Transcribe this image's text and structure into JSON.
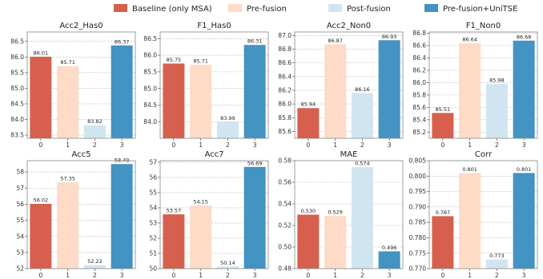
{
  "legend": {
    "placement": "top-center",
    "items": [
      {
        "label": "Baseline (only MSA)",
        "color": "#d6604d"
      },
      {
        "label": "Pre-fusion",
        "color": "#fddbc7"
      },
      {
        "label": "Post-fusion",
        "color": "#d1e5f0"
      },
      {
        "label": "Pre-fusion+UniTSE",
        "color": "#4393c3"
      }
    ]
  },
  "chart_data": [
    {
      "type": "bar",
      "title": "Acc2_Has0",
      "categories": [
        "0",
        "1",
        "2",
        "3"
      ],
      "values": [
        86.01,
        85.71,
        83.82,
        86.37
      ],
      "value_labels": [
        "86.01",
        "85.71",
        "83.82",
        "86.37"
      ],
      "ylim": [
        83.4,
        86.8
      ],
      "yticks": [
        83.5,
        84.0,
        84.5,
        85.0,
        85.5,
        86.0,
        86.5
      ],
      "ytick_labels": [
        "83.5",
        "84.0",
        "84.5",
        "85.0",
        "85.5",
        "86.0",
        "86.5"
      ],
      "grid": true
    },
    {
      "type": "bar",
      "title": "F1_Has0",
      "categories": [
        "0",
        "1",
        "2",
        "3"
      ],
      "values": [
        85.75,
        85.71,
        83.99,
        86.31
      ],
      "value_labels": [
        "85.75",
        "85.71",
        "83.99",
        "86.31"
      ],
      "ylim": [
        83.5,
        86.7
      ],
      "yticks": [
        84.0,
        84.5,
        85.0,
        85.5,
        86.0,
        86.5
      ],
      "ytick_labels": [
        "84.0",
        "84.5",
        "85.0",
        "85.5",
        "86.0",
        "86.5"
      ],
      "grid": true
    },
    {
      "type": "bar",
      "title": "Acc2_Non0",
      "categories": [
        "0",
        "1",
        "2",
        "3"
      ],
      "values": [
        85.94,
        86.87,
        86.16,
        86.93
      ],
      "value_labels": [
        "85.94",
        "86.87",
        "86.16",
        "86.93"
      ],
      "ylim": [
        85.5,
        87.05
      ],
      "yticks": [
        85.6,
        85.8,
        86.0,
        86.2,
        86.4,
        86.6,
        86.8,
        87.0
      ],
      "ytick_labels": [
        "85.6",
        "85.8",
        "86.0",
        "86.2",
        "86.4",
        "86.6",
        "86.8",
        "87.0"
      ],
      "grid": true
    },
    {
      "type": "bar",
      "title": "F1_Non0",
      "categories": [
        "0",
        "1",
        "2",
        "3"
      ],
      "values": [
        85.51,
        86.64,
        85.98,
        86.68
      ],
      "value_labels": [
        "85.51",
        "86.64",
        "85.98",
        "86.68"
      ],
      "ylim": [
        85.1,
        86.82
      ],
      "yticks": [
        85.2,
        85.4,
        85.6,
        85.8,
        86.0,
        86.2,
        86.4,
        86.6,
        86.8
      ],
      "ytick_labels": [
        "85.2",
        "85.4",
        "85.6",
        "85.8",
        "86.0",
        "86.2",
        "86.4",
        "86.6",
        "86.8"
      ],
      "grid": true
    },
    {
      "type": "bar",
      "title": "Acc5",
      "categories": [
        "0",
        "1",
        "2",
        "3"
      ],
      "values": [
        56.02,
        57.35,
        52.22,
        58.49
      ],
      "value_labels": [
        "56.02",
        "57.35",
        "52.22",
        "58.49"
      ],
      "ylim": [
        52,
        58.7
      ],
      "yticks": [
        52,
        53,
        54,
        55,
        56,
        57,
        58
      ],
      "ytick_labels": [
        "52",
        "53",
        "54",
        "55",
        "56",
        "57",
        "58"
      ],
      "grid": true
    },
    {
      "type": "bar",
      "title": "Acc7",
      "categories": [
        "0",
        "1",
        "2",
        "3"
      ],
      "values": [
        53.57,
        54.15,
        50.14,
        56.69
      ],
      "value_labels": [
        "53.57",
        "54.15",
        "50.14",
        "56.69"
      ],
      "ylim": [
        50,
        57.1
      ],
      "yticks": [
        50,
        51,
        52,
        53,
        54,
        55,
        56,
        57
      ],
      "ytick_labels": [
        "50",
        "51",
        "52",
        "53",
        "54",
        "55",
        "56",
        "57"
      ],
      "grid": true
    },
    {
      "type": "bar",
      "title": "MAE",
      "categories": [
        "0",
        "1",
        "2",
        "3"
      ],
      "values": [
        0.53,
        0.529,
        0.574,
        0.496
      ],
      "value_labels": [
        "0.530",
        "0.529",
        "0.574",
        "0.496"
      ],
      "ylim": [
        0.48,
        0.58
      ],
      "yticks": [
        0.48,
        0.5,
        0.52,
        0.54,
        0.56,
        0.58
      ],
      "ytick_labels": [
        "0.48",
        "0.50",
        "0.52",
        "0.54",
        "0.56",
        "0.58"
      ],
      "grid": true
    },
    {
      "type": "bar",
      "title": "Corr",
      "categories": [
        "0",
        "1",
        "2",
        "3"
      ],
      "values": [
        0.787,
        0.801,
        0.773,
        0.801
      ],
      "value_labels": [
        "0.787",
        "0.801",
        "0.773",
        "0.801"
      ],
      "ylim": [
        0.77,
        0.805
      ],
      "yticks": [
        0.77,
        0.775,
        0.78,
        0.785,
        0.79,
        0.795,
        0.8,
        0.805
      ],
      "ytick_labels": [
        "0.770",
        "0.775",
        "0.780",
        "0.785",
        "0.790",
        "0.795",
        "0.800",
        "0.805"
      ],
      "grid": true
    }
  ]
}
